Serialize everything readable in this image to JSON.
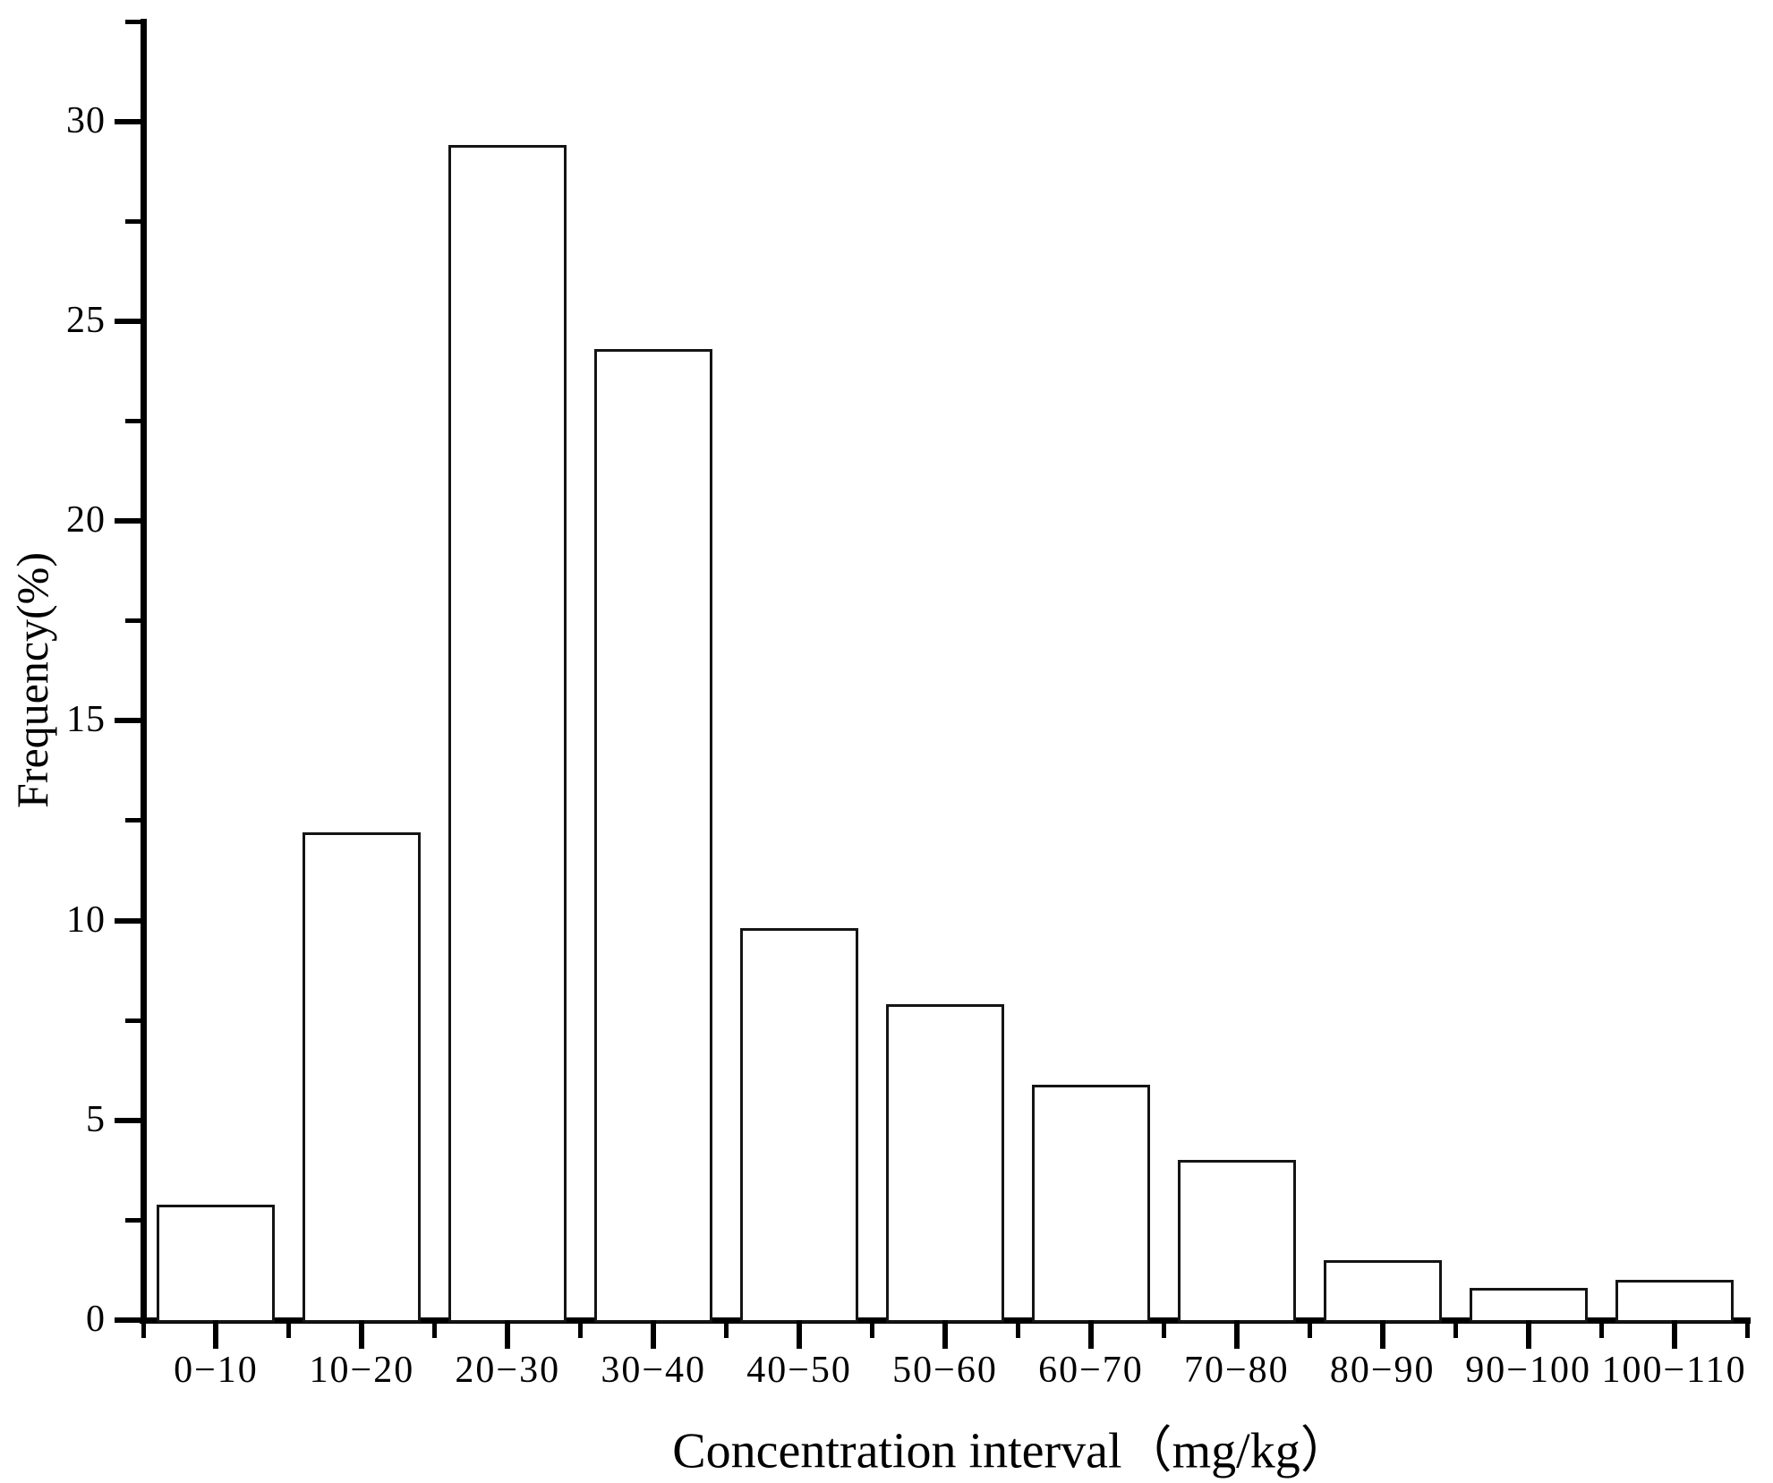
{
  "chart_data": {
    "type": "bar",
    "title": "",
    "categories": [
      "0−10",
      "10−20",
      "20−30",
      "30−40",
      "40−50",
      "50−60",
      "60−70",
      "70−80",
      "80−90",
      "90−100",
      "100−110"
    ],
    "values": [
      2.9,
      12.2,
      29.4,
      24.3,
      9.8,
      7.9,
      5.9,
      4.0,
      1.5,
      0.8,
      1.0
    ],
    "xlabel": "Concentration interval（mg/kg）",
    "ylabel": "Frequency(%)",
    "ylim": [
      0,
      32.5
    ],
    "ytick_values": [
      0,
      5,
      10,
      15,
      20,
      25,
      30
    ],
    "ytick_labels": [
      "0",
      "5",
      "10",
      "15",
      "20",
      "25",
      "30"
    ],
    "yminor_values": [
      2.5,
      7.5,
      12.5,
      17.5,
      22.5,
      27.5,
      32.5
    ],
    "bar_fill": "#ffffff",
    "bar_border": "#141414",
    "axis_color": "#000000",
    "grid": "off",
    "legend": "none"
  }
}
